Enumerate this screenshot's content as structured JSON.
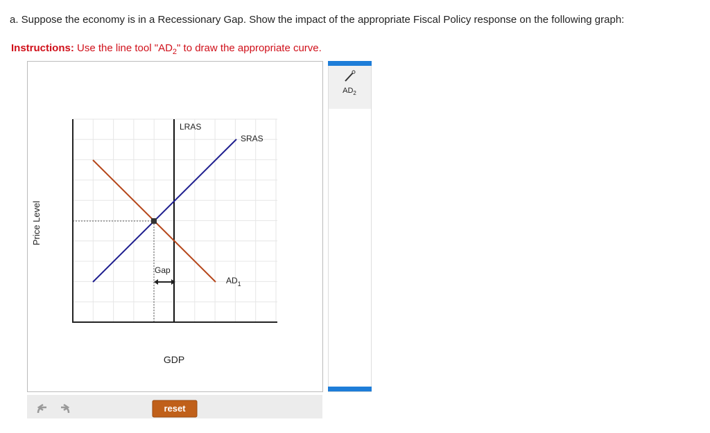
{
  "question": "a. Suppose the economy is in a Recessionary Gap. Show the impact of the appropriate Fiscal Policy response on the following graph:",
  "instructions": {
    "label": "Instructions:",
    "text_before": "Use the line tool \"AD",
    "subscript": "2",
    "text_after": "\" to draw the appropriate curve."
  },
  "graph": {
    "y_axis_label": "Price Level",
    "x_axis_label": "GDP",
    "lras": "LRAS",
    "sras": "SRAS",
    "gap": "Gap",
    "ad": {
      "label": "AD",
      "subscript": "1"
    }
  },
  "tool": {
    "label": "AD",
    "subscript": "2"
  },
  "reset": "reset"
}
